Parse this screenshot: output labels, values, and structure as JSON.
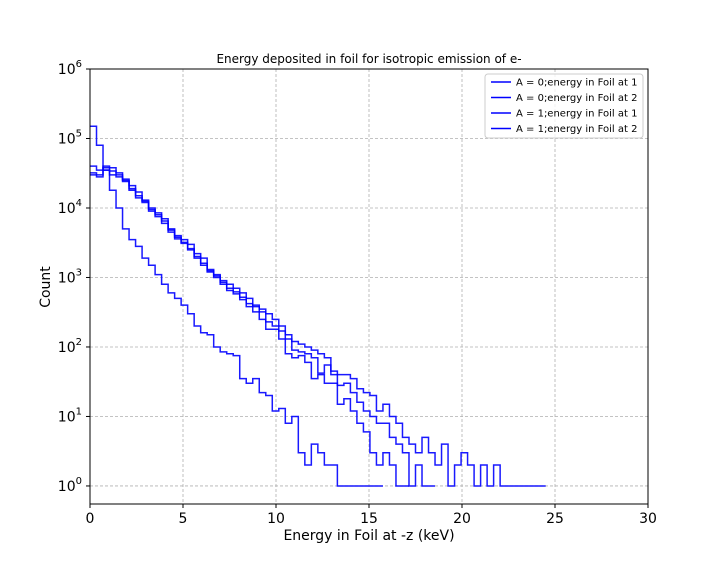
{
  "chart_data": {
    "type": "line",
    "title": "Energy deposited in foil for isotropic emission of e-",
    "xlabel": "Energy in Foil at -z (keV)",
    "ylabel": "Count",
    "xlim": [
      0,
      30
    ],
    "ylim": [
      0.55,
      1000000
    ],
    "yscale": "log",
    "grid": true,
    "legend_position": "top-right",
    "x_ticks": [
      0,
      5,
      10,
      15,
      20,
      25,
      30
    ],
    "x_tick_labels": [
      "0",
      "5",
      "10",
      "15",
      "20",
      "25",
      "30"
    ],
    "y_ticks": [
      1,
      10,
      100,
      1000,
      10000,
      100000,
      1000000
    ],
    "y_tick_labels": [
      {
        "base": "10",
        "exp": "0"
      },
      {
        "base": "10",
        "exp": "1"
      },
      {
        "base": "10",
        "exp": "2"
      },
      {
        "base": "10",
        "exp": "3"
      },
      {
        "base": "10",
        "exp": "4"
      },
      {
        "base": "10",
        "exp": "5"
      },
      {
        "base": "10",
        "exp": "6"
      }
    ],
    "bin_width": 0.35,
    "series": [
      {
        "name": "A = 0;energy in Foil at 1",
        "color": "#0000ff",
        "start": 0,
        "values": [
          40000,
          35000,
          40000,
          38000,
          32000,
          26000,
          21000,
          17000,
          13000,
          10000,
          8500,
          7000,
          5000,
          4000,
          3500,
          3000,
          2200,
          1900,
          1300,
          1100,
          900,
          800,
          700,
          600,
          500,
          400,
          350,
          300,
          250,
          200,
          150,
          120,
          110,
          100,
          90,
          80,
          70,
          45,
          40,
          40,
          35,
          25,
          22,
          20,
          12,
          15,
          10,
          8,
          5,
          4,
          3,
          5,
          3,
          2,
          4,
          1,
          2,
          3,
          2,
          1,
          2,
          1,
          2,
          1,
          1,
          1,
          1,
          1,
          1,
          1
        ]
      },
      {
        "name": "A = 0;energy in Foil at 2",
        "color": "#0000ff",
        "start": 0,
        "values": [
          30000,
          28000,
          38000,
          34000,
          30000,
          25000,
          18000,
          15000,
          12500,
          9500,
          8000,
          6000,
          4500,
          3800,
          3200,
          2600,
          2000,
          1600,
          1250,
          1050,
          850,
          700,
          620,
          520,
          420,
          380,
          320,
          230,
          200,
          170,
          130,
          90,
          85,
          80,
          70,
          42,
          55,
          40,
          28,
          30,
          22,
          16,
          12,
          10,
          8,
          8,
          5,
          4,
          3,
          1,
          2,
          1,
          1
        ]
      },
      {
        "name": "A = 1;energy in Foil at 1",
        "color": "#0000ff",
        "start": 0,
        "values": [
          150000,
          80000,
          35000,
          18000,
          10000,
          5000,
          3500,
          2800,
          1900,
          1500,
          1100,
          800,
          600,
          500,
          400,
          300,
          200,
          160,
          150,
          100,
          85,
          80,
          75,
          35,
          30,
          35,
          22,
          20,
          12,
          13,
          8,
          10,
          3,
          2,
          4,
          3,
          2,
          2,
          1,
          1,
          1,
          1,
          1,
          1,
          1
        ]
      },
      {
        "name": "A = 1;energy in Foil at 2",
        "color": "#0000ff",
        "start": 0,
        "values": [
          32000,
          30000,
          35000,
          30000,
          28000,
          24000,
          19000,
          14000,
          12000,
          9000,
          7500,
          6500,
          4800,
          3600,
          3100,
          2500,
          1900,
          1500,
          1200,
          1000,
          800,
          650,
          580,
          480,
          380,
          320,
          250,
          180,
          180,
          130,
          80,
          70,
          75,
          60,
          35,
          40,
          30,
          30,
          15,
          18,
          12,
          8,
          6,
          3,
          2,
          3,
          2,
          1,
          1
        ]
      }
    ]
  }
}
